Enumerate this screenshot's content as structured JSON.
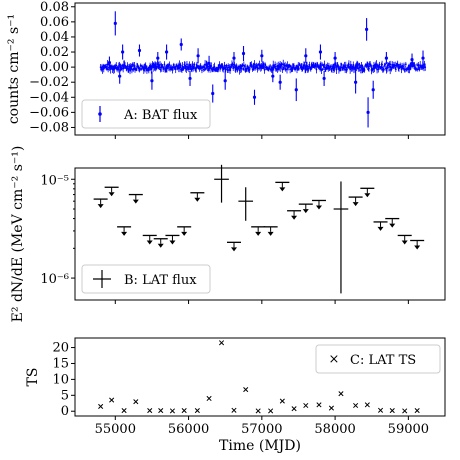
{
  "chart_data": [
    {
      "panel": "A",
      "type": "scatter",
      "ylabel": "counts cm⁻² s⁻¹",
      "xlim": [
        54450,
        59500
      ],
      "ylim": [
        -0.09,
        0.085
      ],
      "yticks": [
        -0.08,
        -0.06,
        -0.04,
        -0.02,
        0.0,
        0.02,
        0.04,
        0.06,
        0.08
      ],
      "ytick_labels": [
        "−0.08",
        "−0.06",
        "−0.04",
        "−0.02",
        "0.00",
        "0.02",
        "0.04",
        "0.06",
        "0.08"
      ],
      "legend": {
        "label": "A: BAT flux",
        "position": "bottom-left"
      },
      "series": [
        {
          "name": "A: BAT flux",
          "color": "#0000ff",
          "x_range": [
            54800,
            59230
          ],
          "baseline": 0.0,
          "scatter_amplitude": 0.004,
          "errorbar_points": [
            {
              "x": 54920,
              "y": 0.006,
              "err": 0.008
            },
            {
              "x": 55000,
              "y": 0.058,
              "err": 0.016
            },
            {
              "x": 55060,
              "y": -0.012,
              "err": 0.01
            },
            {
              "x": 55100,
              "y": 0.02,
              "err": 0.01
            },
            {
              "x": 55330,
              "y": 0.022,
              "err": 0.008
            },
            {
              "x": 55500,
              "y": -0.018,
              "err": 0.012
            },
            {
              "x": 55580,
              "y": 0.012,
              "err": 0.008
            },
            {
              "x": 55700,
              "y": 0.02,
              "err": 0.01
            },
            {
              "x": 55900,
              "y": 0.03,
              "err": 0.008
            },
            {
              "x": 56020,
              "y": -0.015,
              "err": 0.01
            },
            {
              "x": 56130,
              "y": 0.015,
              "err": 0.01
            },
            {
              "x": 56280,
              "y": 0.005,
              "err": 0.01
            },
            {
              "x": 56330,
              "y": -0.035,
              "err": 0.012
            },
            {
              "x": 56500,
              "y": -0.018,
              "err": 0.012
            },
            {
              "x": 56620,
              "y": 0.012,
              "err": 0.008
            },
            {
              "x": 56750,
              "y": 0.018,
              "err": 0.01
            },
            {
              "x": 56900,
              "y": -0.04,
              "err": 0.01
            },
            {
              "x": 57000,
              "y": 0.015,
              "err": 0.008
            },
            {
              "x": 57150,
              "y": -0.012,
              "err": 0.008
            },
            {
              "x": 57250,
              "y": -0.02,
              "err": 0.01
            },
            {
              "x": 57470,
              "y": -0.03,
              "err": 0.015
            },
            {
              "x": 57600,
              "y": 0.015,
              "err": 0.01
            },
            {
              "x": 57800,
              "y": 0.02,
              "err": 0.01
            },
            {
              "x": 57850,
              "y": -0.015,
              "err": 0.01
            },
            {
              "x": 58000,
              "y": 0.012,
              "err": 0.008
            },
            {
              "x": 58280,
              "y": -0.02,
              "err": 0.015
            },
            {
              "x": 58430,
              "y": 0.05,
              "err": 0.015
            },
            {
              "x": 58450,
              "y": -0.06,
              "err": 0.02
            },
            {
              "x": 58520,
              "y": -0.03,
              "err": 0.012
            },
            {
              "x": 58700,
              "y": 0.012,
              "err": 0.008
            },
            {
              "x": 59050,
              "y": 0.01,
              "err": 0.008
            },
            {
              "x": 59200,
              "y": 0.012,
              "err": 0.01
            }
          ]
        }
      ]
    },
    {
      "panel": "B",
      "type": "scatter",
      "ylabel": "E² dN/dE (MeV cm⁻² s⁻¹)",
      "yscale": "log",
      "xlim": [
        54450,
        59500
      ],
      "ylim": [
        6e-07,
        1.3e-05
      ],
      "yticks": [
        1e-06,
        1e-05
      ],
      "ytick_labels": [
        "10⁻⁶",
        "10⁻⁵"
      ],
      "legend": {
        "label": "B: LAT flux",
        "position": "bottom-left"
      },
      "series": [
        {
          "name": "B: LAT flux",
          "color": "#000000",
          "upper_limits": [
            {
              "x": 54800,
              "y": 6.3e-06
            },
            {
              "x": 54950,
              "y": 8.3e-06
            },
            {
              "x": 55120,
              "y": 3.3e-06
            },
            {
              "x": 55280,
              "y": 7e-06
            },
            {
              "x": 55470,
              "y": 2.7e-06
            },
            {
              "x": 55620,
              "y": 2.5e-06
            },
            {
              "x": 55780,
              "y": 2.7e-06
            },
            {
              "x": 55940,
              "y": 3.3e-06
            },
            {
              "x": 56120,
              "y": 7.3e-06
            },
            {
              "x": 56620,
              "y": 2.3e-06
            },
            {
              "x": 56950,
              "y": 3.3e-06
            },
            {
              "x": 57120,
              "y": 3.3e-06
            },
            {
              "x": 57280,
              "y": 9.3e-06
            },
            {
              "x": 57440,
              "y": 4.8e-06
            },
            {
              "x": 57600,
              "y": 5.6e-06
            },
            {
              "x": 57780,
              "y": 6.1e-06
            },
            {
              "x": 58280,
              "y": 6.6e-06
            },
            {
              "x": 58440,
              "y": 8.1e-06
            },
            {
              "x": 58620,
              "y": 3.7e-06
            },
            {
              "x": 58780,
              "y": 4e-06
            },
            {
              "x": 58950,
              "y": 2.7e-06
            },
            {
              "x": 59120,
              "y": 2.4e-06
            }
          ],
          "detections": [
            {
              "x": 56450,
              "y": 1e-05,
              "yerr_low": 5.8e-06,
              "yerr_high": 1.4e-05,
              "xerr": 100
            },
            {
              "x": 56780,
              "y": 6e-06,
              "yerr_low": 3.8e-06,
              "yerr_high": 8.3e-06,
              "xerr": 100
            },
            {
              "x": 58080,
              "y": 5e-06,
              "yerr_low": 7e-07,
              "yerr_high": 9.5e-06,
              "xerr": 100
            }
          ]
        }
      ]
    },
    {
      "panel": "C",
      "type": "scatter",
      "ylabel": "TS",
      "xlabel": "Time (MJD)",
      "xlim": [
        54450,
        59500
      ],
      "ylim": [
        -1.5,
        23
      ],
      "yticks": [
        0,
        5,
        10,
        15,
        20
      ],
      "ytick_labels": [
        "0",
        "5",
        "10",
        "15",
        "20"
      ],
      "xticks": [
        55000,
        56000,
        57000,
        58000,
        59000
      ],
      "xtick_labels": [
        "55000",
        "56000",
        "57000",
        "58000",
        "59000"
      ],
      "legend": {
        "label": "C: LAT TS",
        "position": "top-right"
      },
      "series": [
        {
          "name": "C: LAT TS",
          "color": "#000000",
          "marker": "x",
          "x": [
            54800,
            54950,
            55120,
            55280,
            55470,
            55620,
            55780,
            55940,
            56120,
            56280,
            56450,
            56620,
            56780,
            56950,
            57120,
            57280,
            57440,
            57600,
            57780,
            57950,
            58080,
            58280,
            58440,
            58620,
            58780,
            58950,
            59120
          ],
          "y": [
            1.5,
            3.5,
            0.2,
            3.0,
            0.2,
            0.2,
            0.1,
            0.2,
            0.2,
            4.0,
            21.5,
            0.3,
            6.8,
            0.1,
            0.1,
            3.2,
            0.8,
            1.8,
            2.0,
            1.0,
            5.5,
            1.8,
            2.0,
            0.3,
            0.2,
            0.1,
            0.2
          ]
        }
      ]
    }
  ]
}
